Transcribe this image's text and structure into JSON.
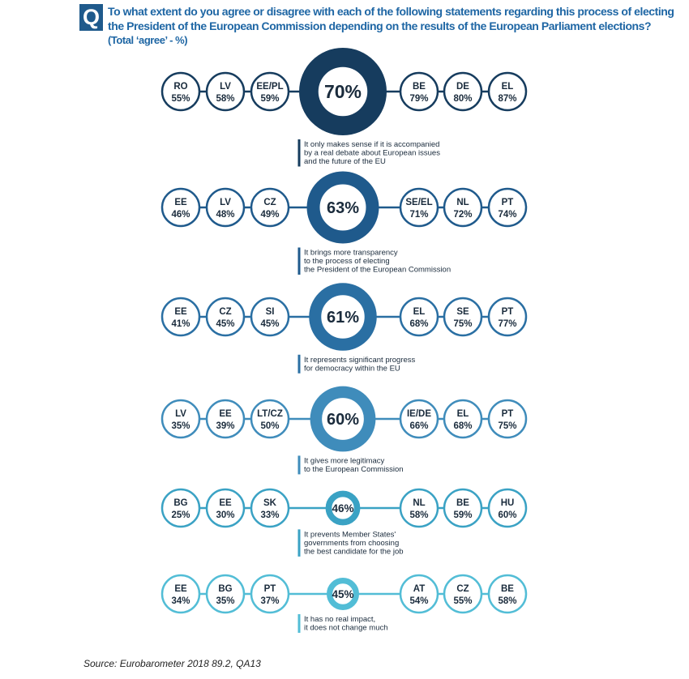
{
  "header": {
    "badge": "Q",
    "question_line1": "To what extent do you agree or disagree with each of the following statements regarding this process of electing",
    "question_line2": "the President of the European Commission depending on the results of the European Parliament elections?",
    "subtitle": "(Total ‘agree’ - %)"
  },
  "source": "Source: Eurobarometer 2018 89.2, QA13",
  "chart_data": {
    "type": "bubble-rows",
    "unit": "%",
    "rows": [
      {
        "total": 70,
        "statement": [
          "It only makes sense if it is accompanied",
          "by a real debate about European issues",
          "and the future of the EU"
        ],
        "lowest": [
          {
            "country": "RO",
            "value": 55
          },
          {
            "country": "LV",
            "value": 58
          },
          {
            "country": "EE/PL",
            "value": 59
          }
        ],
        "highest": [
          {
            "country": "BE",
            "value": 79
          },
          {
            "country": "DE",
            "value": 80
          },
          {
            "country": "EL",
            "value": 87
          }
        ],
        "color": "#163c5e"
      },
      {
        "total": 63,
        "statement": [
          "It brings more transparency",
          "to the process of electing",
          "the President of the European Commission"
        ],
        "lowest": [
          {
            "country": "EE",
            "value": 46
          },
          {
            "country": "LV",
            "value": 48
          },
          {
            "country": "CZ",
            "value": 49
          }
        ],
        "highest": [
          {
            "country": "SE/EL",
            "value": 71
          },
          {
            "country": "NL",
            "value": 72
          },
          {
            "country": "PT",
            "value": 74
          }
        ],
        "color": "#1f5a8c"
      },
      {
        "total": 61,
        "statement": [
          "It represents significant progress",
          "for democracy within the EU"
        ],
        "lowest": [
          {
            "country": "EE",
            "value": 41
          },
          {
            "country": "CZ",
            "value": 45
          },
          {
            "country": "SI",
            "value": 45
          }
        ],
        "highest": [
          {
            "country": "EL",
            "value": 68
          },
          {
            "country": "SE",
            "value": 75
          },
          {
            "country": "PT",
            "value": 77
          }
        ],
        "color": "#2a6fa3"
      },
      {
        "total": 60,
        "statement": [
          "It gives more legitimacy",
          "to the European Commission"
        ],
        "lowest": [
          {
            "country": "LV",
            "value": 35
          },
          {
            "country": "EE",
            "value": 39
          },
          {
            "country": "LT/CZ",
            "value": 50
          }
        ],
        "highest": [
          {
            "country": "IE/DE",
            "value": 66
          },
          {
            "country": "EL",
            "value": 68
          },
          {
            "country": "PT",
            "value": 75
          }
        ],
        "color": "#3f8cbb"
      },
      {
        "total": 46,
        "statement": [
          "It prevents Member States'",
          "governments from choosing",
          "the best candidate for the job"
        ],
        "lowest": [
          {
            "country": "BG",
            "value": 25
          },
          {
            "country": "EE",
            "value": 30
          },
          {
            "country": "SK",
            "value": 33
          }
        ],
        "highest": [
          {
            "country": "NL",
            "value": 58
          },
          {
            "country": "BE",
            "value": 59
          },
          {
            "country": "HU",
            "value": 60
          }
        ],
        "color": "#3aa2c4"
      },
      {
        "total": 45,
        "statement": [
          "It has no real impact,",
          "it does not change much"
        ],
        "lowest": [
          {
            "country": "EE",
            "value": 34
          },
          {
            "country": "BG",
            "value": 35
          },
          {
            "country": "PT",
            "value": 37
          }
        ],
        "highest": [
          {
            "country": "AT",
            "value": 54
          },
          {
            "country": "CZ",
            "value": 55
          },
          {
            "country": "BE",
            "value": 58
          }
        ],
        "color": "#52bdd6"
      }
    ]
  }
}
